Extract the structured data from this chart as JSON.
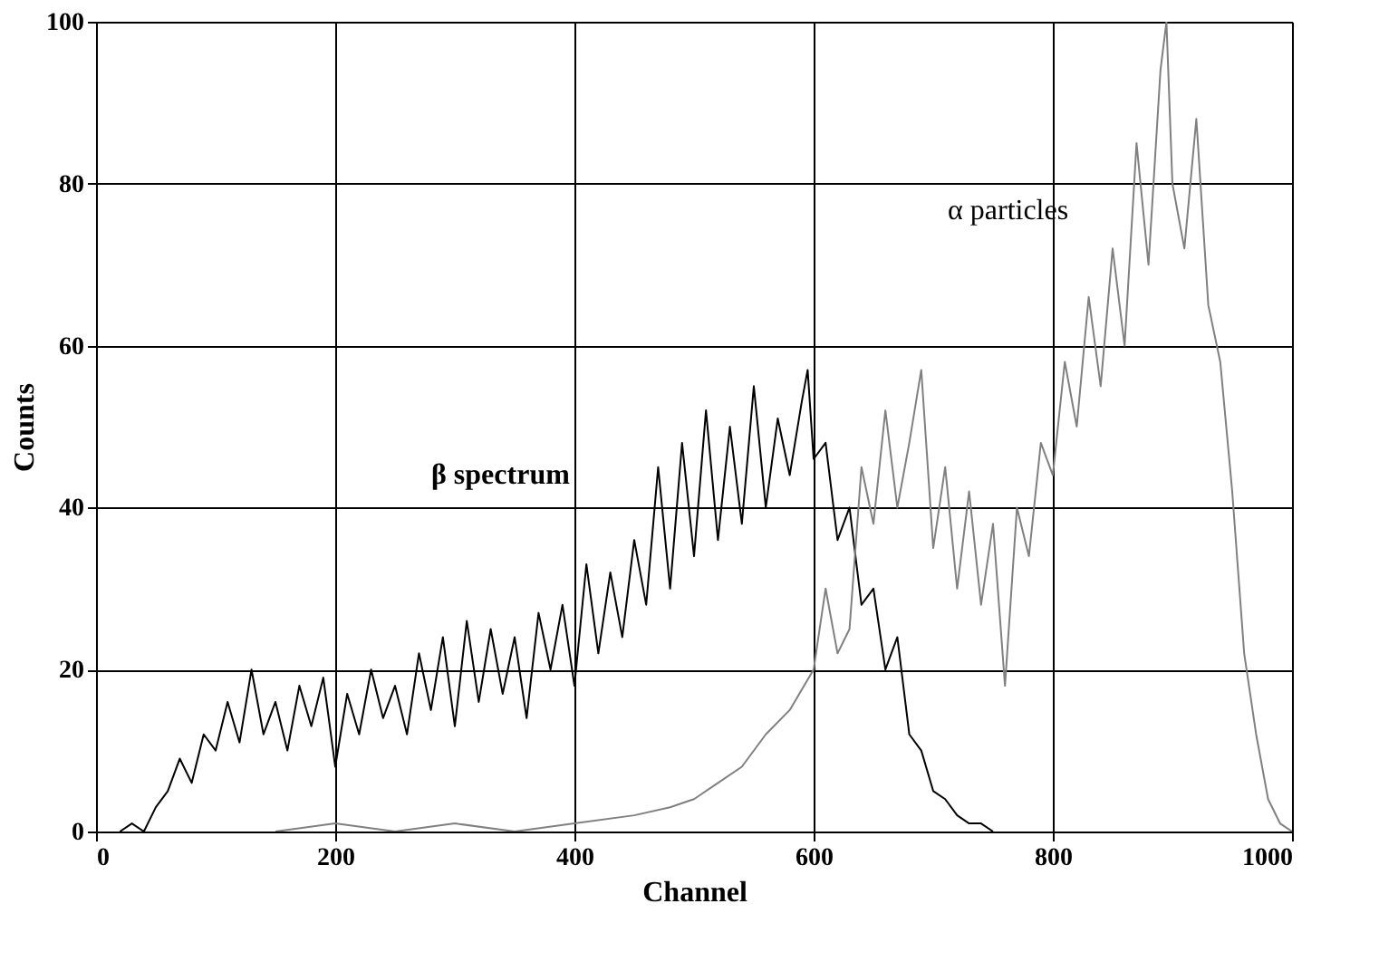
{
  "chart_data": {
    "type": "line",
    "xlabel": "Channel",
    "ylabel": "Counts",
    "xlim": [
      0,
      1000
    ],
    "ylim": [
      0,
      100
    ],
    "xticks": [
      0,
      200,
      400,
      600,
      800,
      1000
    ],
    "yticks": [
      0,
      20,
      40,
      60,
      80,
      100
    ],
    "grid": true,
    "marker": "none",
    "line_style": "solid",
    "series": [
      {
        "name": "β spectrum",
        "color": "#000000",
        "x": [
          20,
          30,
          40,
          50,
          60,
          70,
          80,
          90,
          100,
          110,
          120,
          130,
          140,
          150,
          160,
          170,
          180,
          190,
          200,
          210,
          220,
          230,
          240,
          250,
          260,
          270,
          280,
          290,
          300,
          310,
          320,
          330,
          340,
          350,
          360,
          370,
          380,
          390,
          400,
          410,
          420,
          430,
          440,
          450,
          460,
          470,
          480,
          490,
          500,
          510,
          520,
          530,
          540,
          550,
          560,
          570,
          580,
          590,
          595,
          600,
          610,
          620,
          630,
          640,
          650,
          660,
          670,
          680,
          690,
          700,
          710,
          720,
          730,
          740,
          750
        ],
        "values": [
          0,
          1,
          0,
          3,
          5,
          9,
          6,
          12,
          10,
          16,
          11,
          20,
          12,
          16,
          10,
          18,
          13,
          19,
          8,
          17,
          12,
          20,
          14,
          18,
          12,
          22,
          15,
          24,
          13,
          26,
          16,
          25,
          17,
          24,
          14,
          27,
          20,
          28,
          18,
          33,
          22,
          32,
          24,
          36,
          28,
          45,
          30,
          48,
          34,
          52,
          36,
          50,
          38,
          55,
          40,
          51,
          44,
          53,
          57,
          46,
          48,
          36,
          40,
          28,
          30,
          20,
          24,
          12,
          10,
          5,
          4,
          2,
          1,
          1,
          0
        ]
      },
      {
        "name": "α particles",
        "color": "#808080",
        "x": [
          150,
          200,
          250,
          300,
          350,
          400,
          450,
          480,
          500,
          520,
          540,
          560,
          580,
          600,
          610,
          620,
          630,
          640,
          650,
          660,
          670,
          680,
          690,
          700,
          710,
          720,
          730,
          740,
          750,
          760,
          770,
          780,
          790,
          800,
          810,
          820,
          830,
          840,
          850,
          860,
          870,
          880,
          890,
          895,
          900,
          910,
          920,
          930,
          940,
          950,
          960,
          970,
          980,
          990,
          1000
        ],
        "values": [
          0,
          1,
          0,
          1,
          0,
          1,
          2,
          3,
          4,
          6,
          8,
          12,
          15,
          20,
          30,
          22,
          25,
          45,
          38,
          52,
          40,
          48,
          57,
          35,
          45,
          30,
          42,
          28,
          38,
          18,
          40,
          34,
          48,
          44,
          58,
          50,
          66,
          55,
          72,
          60,
          85,
          70,
          94,
          100,
          80,
          72,
          88,
          65,
          58,
          42,
          22,
          12,
          4,
          1,
          0
        ]
      }
    ]
  }
}
